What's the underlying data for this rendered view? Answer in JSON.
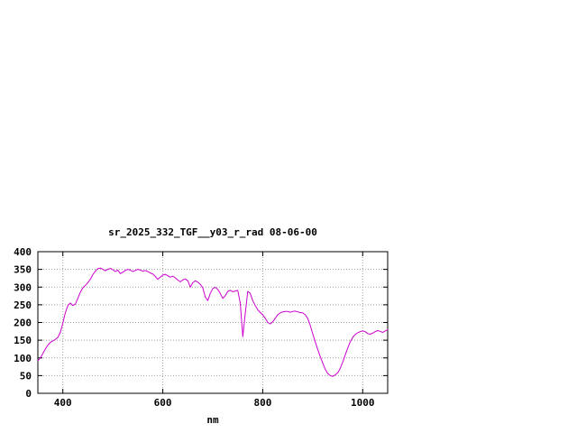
{
  "colors": {
    "background": "#ffffff",
    "axis": "#000000",
    "grid": "#a0a0a0",
    "text": "#000000",
    "line": "#cc00cc"
  },
  "chart_data": {
    "type": "line",
    "title": "sr_2025_332_TGF__y03_r_rad 08-06-00",
    "xlabel": "nm",
    "ylabel": "",
    "xlim": [
      350,
      1050
    ],
    "ylim": [
      0,
      400
    ],
    "x_ticks": [
      400,
      600,
      800,
      1000
    ],
    "y_ticks": [
      0,
      50,
      100,
      150,
      200,
      250,
      300,
      350,
      400
    ],
    "grid": true,
    "legend_position": "none",
    "series": [
      {
        "name": "sr_2025_332_TGF__y03_r_rad",
        "color": "#cc00cc",
        "x": [
          350,
          355,
          360,
          365,
          370,
          375,
          380,
          385,
          390,
          395,
          400,
          405,
          410,
          415,
          420,
          425,
          430,
          435,
          440,
          445,
          450,
          455,
          460,
          465,
          470,
          475,
          480,
          485,
          490,
          495,
          500,
          505,
          510,
          515,
          520,
          525,
          530,
          535,
          540,
          545,
          550,
          555,
          560,
          565,
          570,
          575,
          580,
          585,
          590,
          595,
          600,
          605,
          610,
          615,
          620,
          625,
          630,
          635,
          640,
          645,
          650,
          655,
          660,
          665,
          670,
          675,
          680,
          685,
          690,
          695,
          700,
          705,
          710,
          715,
          720,
          725,
          730,
          735,
          740,
          745,
          750,
          755,
          760,
          765,
          770,
          775,
          780,
          785,
          790,
          795,
          800,
          805,
          810,
          815,
          820,
          825,
          830,
          835,
          840,
          845,
          850,
          855,
          860,
          865,
          870,
          875,
          880,
          885,
          890,
          895,
          900,
          905,
          910,
          915,
          920,
          925,
          930,
          935,
          940,
          945,
          950,
          955,
          960,
          965,
          970,
          975,
          980,
          985,
          990,
          995,
          1000,
          1005,
          1010,
          1015,
          1020,
          1025,
          1030,
          1035,
          1040,
          1045,
          1050
        ],
        "y": [
          92,
          100,
          112,
          125,
          136,
          144,
          148,
          152,
          158,
          172,
          198,
          228,
          248,
          255,
          248,
          252,
          268,
          285,
          298,
          305,
          312,
          322,
          335,
          345,
          352,
          354,
          350,
          346,
          350,
          353,
          349,
          344,
          348,
          338,
          342,
          347,
          350,
          348,
          344,
          347,
          350,
          348,
          345,
          347,
          344,
          340,
          337,
          330,
          322,
          328,
          334,
          336,
          332,
          328,
          331,
          326,
          320,
          315,
          320,
          323,
          318,
          300,
          312,
          318,
          314,
          308,
          298,
          272,
          262,
          282,
          296,
          299,
          294,
          282,
          268,
          276,
          288,
          291,
          287,
          289,
          291,
          255,
          160,
          225,
          288,
          282,
          262,
          248,
          236,
          228,
          222,
          212,
          200,
          196,
          202,
          212,
          222,
          227,
          230,
          231,
          231,
          229,
          231,
          232,
          230,
          228,
          227,
          222,
          212,
          192,
          168,
          146,
          124,
          104,
          86,
          68,
          56,
          50,
          48,
          52,
          58,
          70,
          88,
          108,
          128,
          145,
          158,
          166,
          171,
          174,
          176,
          174,
          169,
          167,
          170,
          174,
          177,
          175,
          172,
          176,
          180
        ]
      }
    ]
  }
}
